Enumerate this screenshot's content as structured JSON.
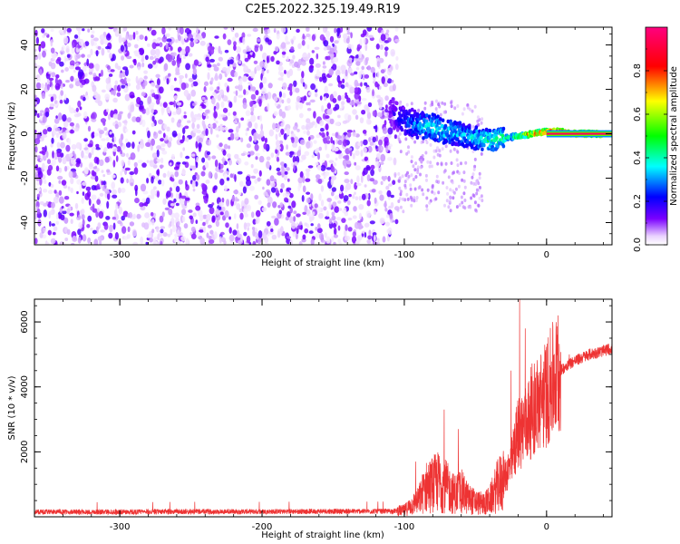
{
  "figure_title": "C2E5.2022.325.19.49.R19",
  "chart_data": [
    {
      "type": "heatmap",
      "title": "",
      "xlabel": "Height of straight line (km)",
      "ylabel": "Frequency (Hz)",
      "xlim": [
        -360,
        46
      ],
      "ylim": [
        -50,
        48
      ],
      "xticks": [
        -300,
        -200,
        -100,
        0
      ],
      "yticks": [
        -40,
        -20,
        0,
        20,
        40
      ],
      "grid": false,
      "colorbar": {
        "label": "Normalized spectral amplitude",
        "range": [
          0,
          1
        ],
        "ticks": [
          "0.0",
          "0.2",
          "0.4",
          "0.6",
          "0.8"
        ],
        "colormap": "hsv-like: white/violet → blue → cyan → green → yellow → red/pink",
        "colors": [
          "#ffffff",
          "#7a00ff",
          "#0000ff",
          "#00ffff",
          "#00ff00",
          "#ffff00",
          "#ff0000",
          "#ff007f"
        ]
      },
      "features": {
        "noise_region_x": [
          -360,
          -105
        ],
        "noise_amplitude_approx": 0.1,
        "signal_trace": [
          {
            "x": -110,
            "y": 10,
            "amplitude": 0.15
          },
          {
            "x": -100,
            "y": 6,
            "amplitude": 0.25
          },
          {
            "x": -90,
            "y": 4,
            "amplitude": 0.35
          },
          {
            "x": -80,
            "y": 3,
            "amplitude": 0.4
          },
          {
            "x": -70,
            "y": 1,
            "amplitude": 0.4
          },
          {
            "x": -60,
            "y": 0,
            "amplitude": 0.35
          },
          {
            "x": -50,
            "y": -2,
            "amplitude": 0.4
          },
          {
            "x": -40,
            "y": -3,
            "amplitude": 0.45
          },
          {
            "x": -30,
            "y": -2,
            "amplitude": 0.5
          },
          {
            "x": -20,
            "y": -1,
            "amplitude": 0.6
          },
          {
            "x": -10,
            "y": 0,
            "amplitude": 0.8
          },
          {
            "x": 0,
            "y": 1,
            "amplitude": 0.9
          },
          {
            "x": 10,
            "y": 1,
            "amplitude": 0.95
          },
          {
            "x": 20,
            "y": 0,
            "amplitude": 0.95
          },
          {
            "x": 30,
            "y": 0,
            "amplitude": 0.95
          },
          {
            "x": 46,
            "y": 0,
            "amplitude": 0.95
          }
        ]
      }
    },
    {
      "type": "line",
      "title": "",
      "xlabel": "Height of straight line (km)",
      "ylabel": "SNR (10 * v/v)",
      "xlim": [
        -360,
        46
      ],
      "ylim": [
        0,
        6700
      ],
      "xticks": [
        -300,
        -200,
        -100,
        0
      ],
      "yticks": [
        2000,
        4000,
        6000
      ],
      "grid": false,
      "color": "#ee3333",
      "series": [
        {
          "x": [
            -360,
            -300,
            -250,
            -200,
            -150,
            -110,
            -100,
            -95,
            -90,
            -85,
            -80,
            -75,
            -70,
            -65,
            -60,
            -55,
            -50,
            -45,
            -40,
            -35,
            -30,
            -25,
            -20,
            -15,
            -10,
            -5,
            0,
            5,
            10,
            15,
            20,
            25,
            30,
            35,
            40,
            46
          ],
          "y": [
            150,
            150,
            160,
            160,
            170,
            170,
            200,
            350,
            500,
            900,
            1000,
            1100,
            900,
            700,
            800,
            550,
            450,
            400,
            500,
            900,
            1200,
            1600,
            2600,
            2800,
            3300,
            3500,
            3800,
            4200,
            4500,
            4700,
            4800,
            4900,
            5000,
            5050,
            5100,
            5200
          ],
          "spikes": [
            {
              "x": -92,
              "y": 1700
            },
            {
              "x": -72,
              "y": 3300
            },
            {
              "x": -62,
              "y": 2700
            },
            {
              "x": -25,
              "y": 4500
            },
            {
              "x": -19,
              "y": 6700
            },
            {
              "x": -15,
              "y": 5800
            },
            {
              "x": 8,
              "y": 6200
            },
            {
              "x": 16,
              "y": 5000
            }
          ]
        }
      ]
    }
  ]
}
